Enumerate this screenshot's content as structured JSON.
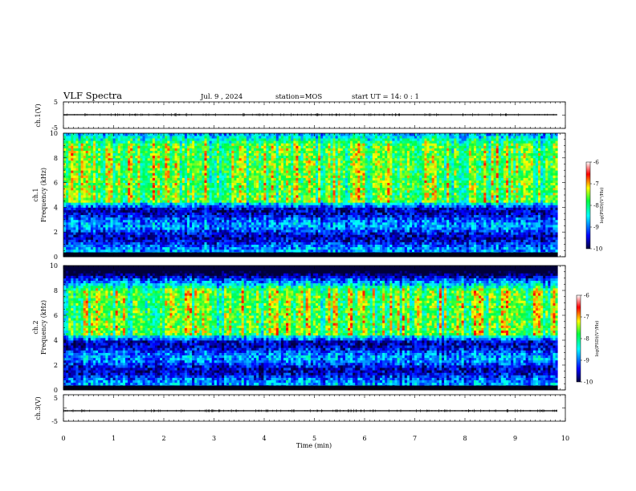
{
  "header": {
    "title": "VLF Spectra",
    "date": "Jul. 9 , 2024",
    "station": "station=MOS",
    "start": "start UT = 14: 0 : 1"
  },
  "chart_data": [
    {
      "type": "line",
      "panel": "ch1-waveform",
      "ylabel": "ch.1(V)",
      "yticklabels": [
        "5",
        "-5"
      ],
      "ylim": [
        -5,
        5
      ],
      "xlim": [
        0,
        10
      ],
      "series": [
        {
          "values": "near-constant trace at about -1 V"
        }
      ]
    },
    {
      "type": "heatmap",
      "panel": "ch1-spectrogram",
      "ylabel_lines": [
        "ch.1",
        "Frequency (kHz)"
      ],
      "xlim": [
        0,
        10
      ],
      "ylim": [
        0,
        10
      ],
      "yticklabels": [
        "0",
        "2",
        "4",
        "6",
        "8",
        "10"
      ],
      "colorbar": {
        "label": "log(PSD)(V²/Hz)",
        "range": [
          -10,
          -6
        ],
        "ticklabels": [
          "-6",
          "-7",
          "-8",
          "-9",
          "-10"
        ]
      },
      "description_bands": {
        "strong_band_khz": [
          4.5,
          9
        ],
        "weak_band_khz": [
          0.4,
          4
        ]
      }
    },
    {
      "type": "heatmap",
      "panel": "ch2-spectrogram",
      "ylabel_lines": [
        "ch.2",
        "Frequency (kHz)"
      ],
      "xlim": [
        0,
        10
      ],
      "ylim": [
        0,
        10
      ],
      "yticklabels": [
        "0",
        "2",
        "4",
        "6",
        "8",
        "10"
      ],
      "colorbar": {
        "label": "log(PSD)(V²/Hz)",
        "range": [
          -10,
          -6
        ],
        "ticklabels": [
          "-6",
          "-7",
          "-8",
          "-9",
          "-10"
        ]
      },
      "description_bands": {
        "strong_band_khz": [
          4.5,
          8
        ],
        "weak_band_khz": [
          0.4,
          4
        ]
      }
    },
    {
      "type": "line",
      "panel": "ch3-waveform",
      "ylabel": "ch.3(V)",
      "yticklabels": [
        "5",
        "-5"
      ],
      "ylim": [
        -5,
        5
      ],
      "xlim": [
        0,
        10
      ],
      "series": [
        {
          "values": "near-constant trace at about -1 V"
        }
      ]
    }
  ],
  "xaxis": {
    "label": "Time (min)",
    "ticklabels": [
      "0",
      "1",
      "2",
      "3",
      "4",
      "5",
      "6",
      "7",
      "8",
      "9",
      "10"
    ],
    "range": [
      0,
      10
    ],
    "data_end": 9.85
  },
  "colors": {
    "colormap": [
      "#00003a",
      "#0000ff",
      "#00ffff",
      "#00ff40",
      "#ffff00",
      "#ff0000",
      "#ffffff"
    ]
  }
}
